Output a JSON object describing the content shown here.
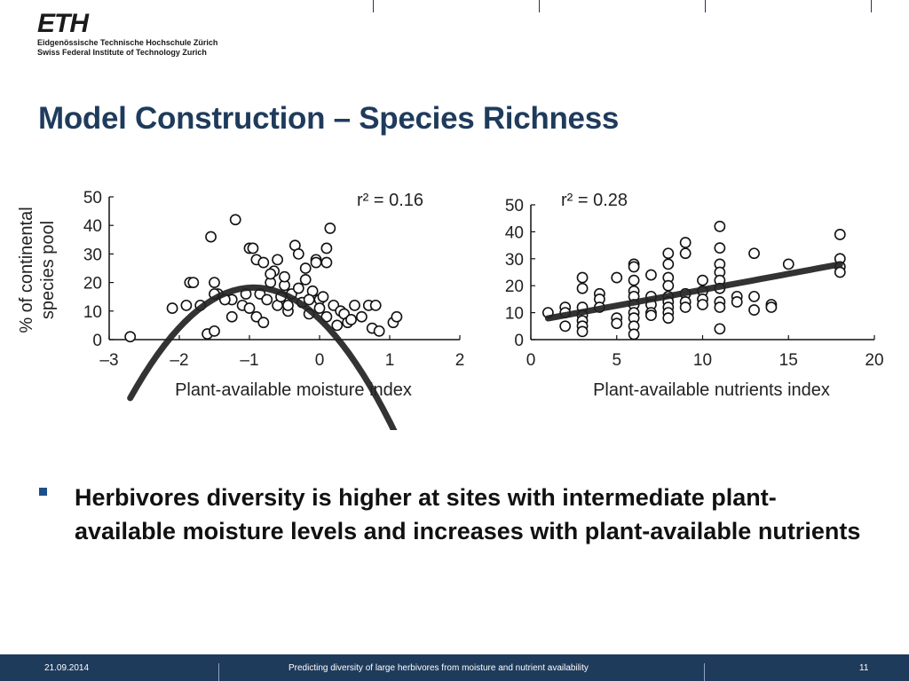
{
  "header": {
    "logo_text": "ETH",
    "logo_line1": "Eidgenössische Technische Hochschule Zürich",
    "logo_line2": "Swiss Federal Institute of Technology Zurich"
  },
  "slide": {
    "title": "Model Construction – Species Richness",
    "bullet": "Herbivores diversity is higher at sites with intermediate plant-available moisture levels and increases with plant-available nutrients"
  },
  "footer": {
    "date": "21.09.2014",
    "caption": "Predicting diversity of large herbivores from moisture and nutrient availability",
    "page_number": "11"
  },
  "colors": {
    "title": "#1f3b5c",
    "footer_bg": "#1f3b5c",
    "bullet": "#1f4e8c"
  },
  "chart_data": [
    {
      "type": "scatter",
      "ylabel": "% of continental species pool",
      "xlabel": "Plant-available moisture index",
      "annotation": "r² = 0.16",
      "xlim": [
        -3,
        2
      ],
      "ylim": [
        0,
        50
      ],
      "xticks": [
        "–3",
        "–2",
        "–1",
        "0",
        "1",
        "2"
      ],
      "yticks": [
        "0",
        "10",
        "20",
        "30",
        "40",
        "50"
      ],
      "fit": {
        "type": "quadratic",
        "a": -12.5,
        "b": -23.5,
        "c": 7.2
      },
      "fit_range": [
        -2.7,
        1.2
      ],
      "points": [
        [
          -2.7,
          1
        ],
        [
          -2.1,
          11
        ],
        [
          -1.9,
          12
        ],
        [
          -1.85,
          20
        ],
        [
          -1.8,
          20
        ],
        [
          -1.7,
          12
        ],
        [
          -1.6,
          2
        ],
        [
          -1.55,
          36
        ],
        [
          -1.5,
          3
        ],
        [
          -1.5,
          20
        ],
        [
          -1.45,
          16
        ],
        [
          -1.25,
          8
        ],
        [
          -1.25,
          14
        ],
        [
          -1.2,
          42
        ],
        [
          -1.1,
          12
        ],
        [
          -1.05,
          16
        ],
        [
          -1.0,
          11
        ],
        [
          -1.0,
          32
        ],
        [
          -0.95,
          32
        ],
        [
          -0.9,
          28
        ],
        [
          -0.9,
          8
        ],
        [
          -0.85,
          16
        ],
        [
          -0.8,
          27
        ],
        [
          -0.75,
          14
        ],
        [
          -0.7,
          20
        ],
        [
          -0.65,
          24
        ],
        [
          -0.6,
          28
        ],
        [
          -0.6,
          12
        ],
        [
          -0.55,
          15
        ],
        [
          -0.5,
          19
        ],
        [
          -0.5,
          22
        ],
        [
          -0.45,
          10
        ],
        [
          -0.4,
          16
        ],
        [
          -0.35,
          33
        ],
        [
          -0.3,
          30
        ],
        [
          -0.3,
          18
        ],
        [
          -0.25,
          13
        ],
        [
          -0.2,
          25
        ],
        [
          -0.2,
          21
        ],
        [
          -0.15,
          9
        ],
        [
          -0.1,
          17
        ],
        [
          -0.05,
          28
        ],
        [
          -0.05,
          27
        ],
        [
          0.0,
          14
        ],
        [
          0.0,
          11
        ],
        [
          0.05,
          15
        ],
        [
          0.1,
          32
        ],
        [
          0.1,
          27
        ],
        [
          0.1,
          8
        ],
        [
          0.15,
          39
        ],
        [
          0.2,
          12
        ],
        [
          0.3,
          10
        ],
        [
          0.35,
          9
        ],
        [
          0.4,
          6
        ],
        [
          0.45,
          7
        ],
        [
          0.5,
          12
        ],
        [
          0.6,
          8
        ],
        [
          0.7,
          12
        ],
        [
          0.75,
          4
        ],
        [
          0.8,
          12
        ],
        [
          0.85,
          3
        ],
        [
          1.05,
          6
        ],
        [
          1.1,
          8
        ],
        [
          0.25,
          5
        ],
        [
          -0.15,
          14
        ],
        [
          -0.7,
          23
        ],
        [
          -0.45,
          12
        ],
        [
          -1.35,
          14
        ],
        [
          -0.8,
          6
        ],
        [
          -1.5,
          16
        ]
      ]
    },
    {
      "type": "scatter",
      "xlabel": "Plant-available nutrients index",
      "annotation": "r² = 0.28",
      "xlim": [
        0,
        20
      ],
      "ylim": [
        0,
        50
      ],
      "xticks": [
        "0",
        "5",
        "10",
        "15",
        "20"
      ],
      "yticks": [
        "0",
        "10",
        "20",
        "30",
        "40",
        "50"
      ],
      "fit": {
        "type": "linear",
        "slope": 1.18,
        "intercept": 6.7
      },
      "fit_range": [
        1,
        18
      ],
      "points": [
        [
          1,
          10
        ],
        [
          2,
          12
        ],
        [
          2,
          5
        ],
        [
          2,
          10
        ],
        [
          3,
          23
        ],
        [
          3,
          19
        ],
        [
          3,
          12
        ],
        [
          3,
          9
        ],
        [
          3,
          7
        ],
        [
          3,
          5
        ],
        [
          3,
          3
        ],
        [
          4,
          17
        ],
        [
          4,
          15
        ],
        [
          4,
          12
        ],
        [
          5,
          23
        ],
        [
          5,
          8
        ],
        [
          5,
          6
        ],
        [
          6,
          28
        ],
        [
          6,
          27
        ],
        [
          6,
          22
        ],
        [
          6,
          18
        ],
        [
          6,
          16
        ],
        [
          6,
          13
        ],
        [
          6,
          10
        ],
        [
          6,
          8
        ],
        [
          6,
          5
        ],
        [
          6,
          2
        ],
        [
          7,
          24
        ],
        [
          7,
          16
        ],
        [
          7,
          13
        ],
        [
          7,
          10
        ],
        [
          7,
          9
        ],
        [
          8,
          32
        ],
        [
          8,
          28
        ],
        [
          8,
          23
        ],
        [
          8,
          20
        ],
        [
          8,
          16
        ],
        [
          8,
          14
        ],
        [
          8,
          12
        ],
        [
          8,
          10
        ],
        [
          8,
          8
        ],
        [
          9,
          36
        ],
        [
          9,
          32
        ],
        [
          9,
          17
        ],
        [
          9,
          14
        ],
        [
          9,
          12
        ],
        [
          10,
          22
        ],
        [
          10,
          18
        ],
        [
          10,
          15
        ],
        [
          10,
          13
        ],
        [
          11,
          42
        ],
        [
          11,
          34
        ],
        [
          11,
          28
        ],
        [
          11,
          25
        ],
        [
          11,
          22
        ],
        [
          11,
          19
        ],
        [
          11,
          14
        ],
        [
          11,
          12
        ],
        [
          11,
          4
        ],
        [
          12,
          16
        ],
        [
          12,
          14
        ],
        [
          13,
          32
        ],
        [
          13,
          16
        ],
        [
          13,
          11
        ],
        [
          14,
          13
        ],
        [
          14,
          12
        ],
        [
          15,
          28
        ],
        [
          18,
          39
        ],
        [
          18,
          30
        ],
        [
          18,
          27
        ],
        [
          18,
          25
        ]
      ]
    }
  ]
}
